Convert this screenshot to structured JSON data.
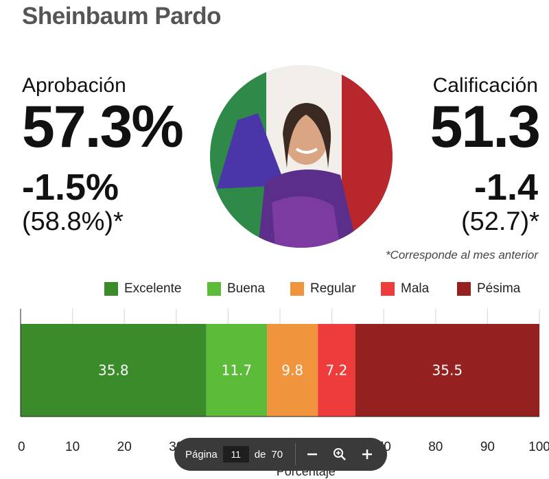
{
  "header": {
    "title": "Sheinbaum Pardo"
  },
  "approval": {
    "label": "Aprobación",
    "value": "57.3%",
    "delta": "-1.5%",
    "previous": "(58.8%)*"
  },
  "rating": {
    "label": "Calificación",
    "value": "51.3",
    "delta": "-1.4",
    "previous": "(52.7)*"
  },
  "footnote": "*Corresponde al mes anterior",
  "colors": {
    "Excelente": "#3a8c2a",
    "Buena": "#5dbb3a",
    "Regular": "#f0953e",
    "Mala": "#ee3b3b",
    "Pésima": "#952020"
  },
  "chart_data": {
    "type": "bar",
    "orientation": "horizontal",
    "stacked": true,
    "categories": [
      ""
    ],
    "series": [
      {
        "name": "Excelente",
        "values": [
          35.8
        ]
      },
      {
        "name": "Buena",
        "values": [
          11.7
        ]
      },
      {
        "name": "Regular",
        "values": [
          9.8
        ]
      },
      {
        "name": "Mala",
        "values": [
          7.2
        ]
      },
      {
        "name": "Pésima",
        "values": [
          35.5
        ]
      }
    ],
    "xlabel": "Porcentaje",
    "xlim": [
      0,
      100
    ],
    "xticks": [
      0,
      10,
      20,
      30,
      40,
      50,
      60,
      70,
      80,
      90,
      100
    ],
    "grid": true,
    "legend": "top"
  },
  "pager": {
    "label": "Página",
    "current": "11",
    "of": "de",
    "total": "70"
  }
}
